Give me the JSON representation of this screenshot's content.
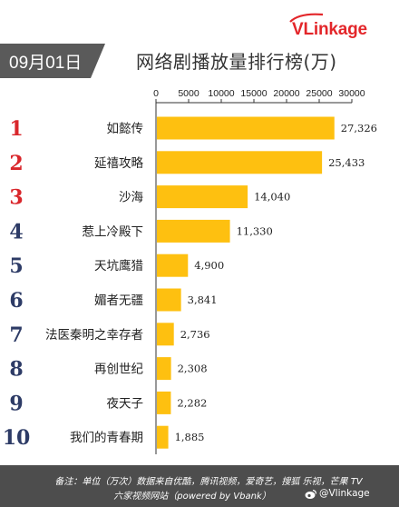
{
  "brand": {
    "logo_text": "VLinkage"
  },
  "header": {
    "date": "09月01日",
    "title": "网络剧播放量排行榜(万)"
  },
  "colors": {
    "bar": "#fec010",
    "rank_top3": "#d9262b",
    "rank_other": "#2d3b66",
    "footer_bg": "#4d4d4d"
  },
  "chart_data": {
    "type": "bar",
    "orientation": "horizontal",
    "title": "网络剧播放量排行榜(万)",
    "categories": [
      "如懿传",
      "延禧攻略",
      "沙海",
      "惹上冷殿下",
      "天坑鹰猎",
      "媚者无疆",
      "法医秦明之幸存者",
      "再创世纪",
      "夜天子",
      "我们的青春期"
    ],
    "ranks": [
      "1",
      "2",
      "3",
      "4",
      "5",
      "6",
      "7",
      "8",
      "9",
      "10"
    ],
    "values": [
      27326,
      25433,
      14040,
      11330,
      4900,
      3841,
      2736,
      2308,
      2282,
      1885
    ],
    "value_labels": [
      "27,326",
      "25,433",
      "14,040",
      "11,330",
      "4,900",
      "3,841",
      "2,736",
      "2,308",
      "2,282",
      "1,885"
    ],
    "xlim": [
      0,
      30000
    ],
    "ticks": [
      "0",
      "5000",
      "10000",
      "15000",
      "20000",
      "25000",
      "30000"
    ],
    "axis_position": "top",
    "grid": false
  },
  "footer": {
    "line1": "备注：单位（万次）数据来自优酷，腾讯视频，爱奇艺，搜狐 乐视，芒果 TV",
    "line2": "六家视频网站（powered by Vbank）",
    "watermark": "@Vlinkage"
  }
}
